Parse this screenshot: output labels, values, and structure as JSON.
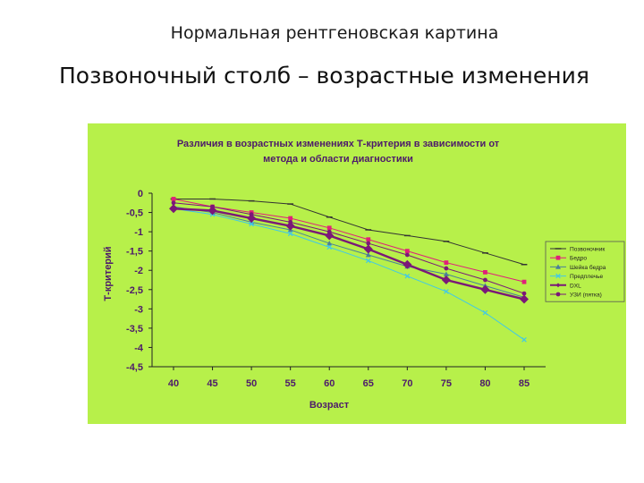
{
  "slide": {
    "subtitle": "Нормальная рентгеновская картина",
    "title": "Позвоночный столб – возрастные изменения"
  },
  "colors": {
    "panel": "#b7f04a",
    "axis": "#222222"
  },
  "chart_data": {
    "type": "line",
    "title": "Различия в возрастных изменениях Т-критерия в зависимости от метода и области диагностики",
    "title_lines": [
      "Различия в возрастных изменениях Т-критерия в зависимости от",
      "метода и области диагностики"
    ],
    "xlabel": "Возраст",
    "ylabel": "Т-критерий",
    "x": [
      40,
      45,
      50,
      55,
      60,
      65,
      70,
      75,
      80,
      85
    ],
    "x_tick_labels": [
      "40",
      "45",
      "50",
      "55",
      "60",
      "65",
      "70",
      "75",
      "80",
      "85"
    ],
    "ylim": [
      -4.5,
      0
    ],
    "y_ticks": [
      0,
      -0.5,
      -1,
      -1.5,
      -2,
      -2.5,
      -3,
      -3.5,
      -4,
      -4.5
    ],
    "y_tick_labels": [
      "0",
      "-0,5",
      "-1",
      "-1,5",
      "-2",
      "-2,5",
      "-3",
      "-3,5",
      "-4",
      "-4,5"
    ],
    "grid": false,
    "legend_position": "right",
    "series": [
      {
        "name": "Позвоночник",
        "color": "#333333",
        "marker": "dash",
        "width": 1,
        "values": [
          -0.15,
          -0.15,
          -0.2,
          -0.28,
          -0.62,
          -0.95,
          -1.1,
          -1.25,
          -1.55,
          -1.85
        ]
      },
      {
        "name": "Бедро",
        "color": "#e0207a",
        "marker": "square",
        "width": 1,
        "values": [
          -0.15,
          -0.35,
          -0.5,
          -0.65,
          -0.9,
          -1.2,
          -1.5,
          -1.8,
          -2.05,
          -2.3
        ]
      },
      {
        "name": "Шейка бедра",
        "color": "#4a7f99",
        "marker": "triangle",
        "width": 1,
        "values": [
          -0.35,
          -0.5,
          -0.75,
          -0.95,
          -1.3,
          -1.6,
          -1.9,
          -2.1,
          -2.4,
          -2.7
        ]
      },
      {
        "name": "Предплечье",
        "color": "#40c8e8",
        "marker": "cross",
        "width": 1,
        "values": [
          -0.4,
          -0.55,
          -0.8,
          -1.05,
          -1.4,
          -1.75,
          -2.15,
          -2.55,
          -3.1,
          -3.8
        ]
      },
      {
        "name": "DXL",
        "color": "#7a1878",
        "marker": "diamond",
        "width": 2.4,
        "values": [
          -0.4,
          -0.45,
          -0.65,
          -0.85,
          -1.1,
          -1.45,
          -1.85,
          -2.25,
          -2.5,
          -2.75
        ]
      },
      {
        "name": "УЗИ (пятка)",
        "color": "#7a1878",
        "marker": "dot",
        "width": 1,
        "values": [
          -0.25,
          -0.35,
          -0.55,
          -0.75,
          -1.0,
          -1.3,
          -1.6,
          -1.95,
          -2.25,
          -2.6
        ]
      }
    ]
  }
}
